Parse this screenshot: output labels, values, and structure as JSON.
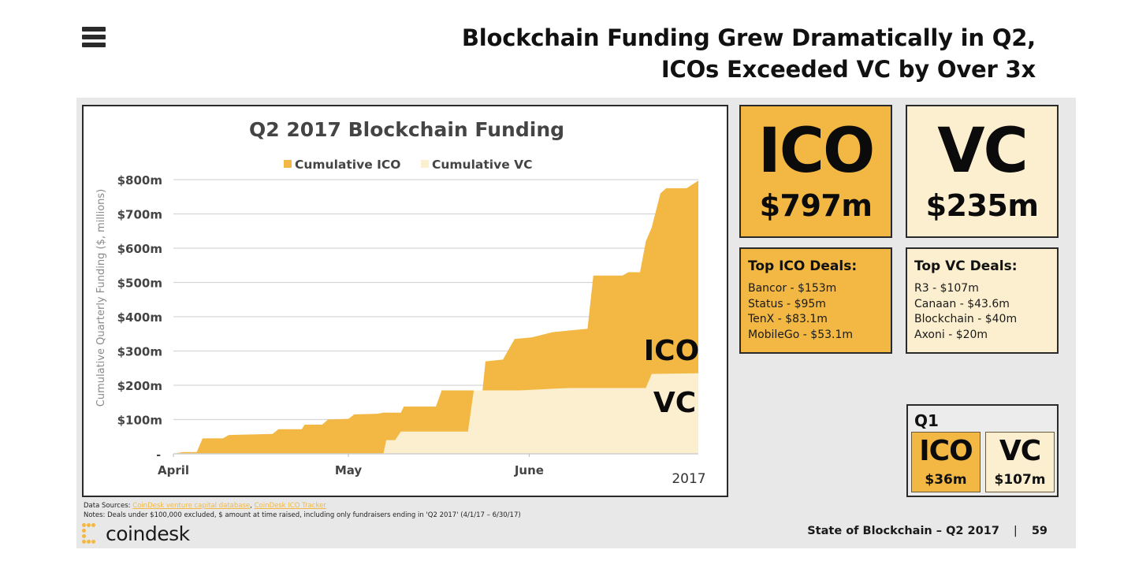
{
  "header": {
    "menu_icon": "hamburger-menu-icon",
    "headline_line1": "Blockchain Funding Grew Dramatically in Q2,",
    "headline_line2": "ICOs Exceeded VC by Over 3x"
  },
  "colors": {
    "ico": "#f2b843",
    "vc": "#fcefcf",
    "slide_bg": "#e8e8e8",
    "text": "#111111"
  },
  "chart_data": {
    "type": "area",
    "title": "Q2 2017 Blockchain Funding",
    "ylabel": "Cumulative Quarterly Funding ($, millions)",
    "xlabel": "2017",
    "x_unit": "days since April 1, 2017",
    "xlim": [
      0,
      91
    ],
    "ylim": [
      0,
      800
    ],
    "yticks": [
      {
        "value": 0,
        "label": "-"
      },
      {
        "value": 100,
        "label": "$100m"
      },
      {
        "value": 200,
        "label": "$200m"
      },
      {
        "value": 300,
        "label": "$300m"
      },
      {
        "value": 400,
        "label": "$400m"
      },
      {
        "value": 500,
        "label": "$500m"
      },
      {
        "value": 600,
        "label": "$600m"
      },
      {
        "value": 700,
        "label": "$700m"
      },
      {
        "value": 800,
        "label": "$800m"
      }
    ],
    "xticks": [
      {
        "value": 0,
        "label": "April"
      },
      {
        "value": 30,
        "label": "May"
      },
      {
        "value": 61,
        "label": "June"
      }
    ],
    "grid": true,
    "legend_position": "top-center",
    "annotations": [
      "ICO",
      "VC"
    ],
    "series": [
      {
        "name": "Cumulative ICO",
        "color": "#f2b843",
        "points": [
          [
            0,
            0
          ],
          [
            1.6,
            5
          ],
          [
            4,
            5
          ],
          [
            5,
            45
          ],
          [
            8.5,
            45
          ],
          [
            9.5,
            55
          ],
          [
            17,
            58
          ],
          [
            18,
            72
          ],
          [
            22,
            72
          ],
          [
            22.5,
            85
          ],
          [
            25.5,
            85
          ],
          [
            26.5,
            100
          ],
          [
            30,
            102
          ],
          [
            31,
            115
          ],
          [
            35,
            117
          ],
          [
            36,
            120
          ],
          [
            39,
            120
          ],
          [
            39.5,
            138
          ],
          [
            45,
            138
          ],
          [
            46,
            185
          ],
          [
            53,
            185
          ],
          [
            53.5,
            270
          ],
          [
            56.5,
            275
          ],
          [
            58.5,
            335
          ],
          [
            61.5,
            340
          ],
          [
            65,
            355
          ],
          [
            68,
            360
          ],
          [
            71,
            365
          ],
          [
            72,
            520
          ],
          [
            77,
            520
          ],
          [
            78,
            530
          ],
          [
            80,
            530
          ],
          [
            81,
            620
          ],
          [
            82,
            660
          ],
          [
            83.5,
            760
          ],
          [
            84.5,
            775
          ],
          [
            88,
            775
          ],
          [
            90,
            797
          ]
        ]
      },
      {
        "name": "Cumulative VC",
        "color": "#fcefcf",
        "points": [
          [
            0,
            0
          ],
          [
            36,
            0
          ],
          [
            36.5,
            40
          ],
          [
            38,
            40
          ],
          [
            39,
            65
          ],
          [
            50.5,
            65
          ],
          [
            51.5,
            185
          ],
          [
            59.5,
            185
          ],
          [
            65,
            190
          ],
          [
            68,
            192
          ],
          [
            81,
            192
          ],
          [
            82,
            233
          ],
          [
            90,
            235
          ]
        ]
      }
    ]
  },
  "totals": {
    "ico": {
      "label": "ICO",
      "value": "$797m"
    },
    "vc": {
      "label": "VC",
      "value": "$235m"
    }
  },
  "top_deals": {
    "ico": {
      "title": "Top ICO Deals:",
      "items": [
        "Bancor - $153m",
        "Status - $95m",
        "TenX - $83.1m",
        "MobileGo - $53.1m"
      ]
    },
    "vc": {
      "title": "Top VC Deals:",
      "items": [
        "R3 - $107m",
        "Canaan - $43.6m",
        "Blockchain - $40m",
        "Axoni - $20m"
      ]
    }
  },
  "q1": {
    "title": "Q1",
    "ico": {
      "label": "ICO",
      "value": "$36m"
    },
    "vc": {
      "label": "VC",
      "value": "$107m"
    }
  },
  "footer": {
    "sources_label": "Data Sources:",
    "source_link_1": "CoinDesk venture capital database",
    "source_sep": ", ",
    "source_link_2": "CoinDesk ICO Tracker",
    "notes": "Notes: Deals under $100,000 excluded, $ amount at time raised, including only fundraisers ending in 'Q2 2017'  (4/1/17 – 6/30/17)",
    "logo_text": "coindesk",
    "report_title": "State of Blockchain – Q2 2017",
    "separator": "|",
    "page_number": "59"
  }
}
